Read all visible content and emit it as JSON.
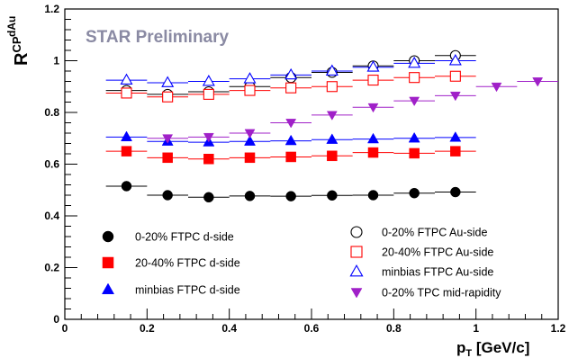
{
  "chart_data": {
    "type": "scatter",
    "watermark": "STAR Preliminary",
    "ylabel": {
      "main": "R",
      "sup": "dAu",
      "sub": "CP"
    },
    "xlabel": {
      "main": "p",
      "sub": "T",
      "rest": " [GeV/c]"
    },
    "xlim": [
      0,
      1.2
    ],
    "ylim": [
      0,
      1.2
    ],
    "x_ticks": [
      "0",
      "0.2",
      "0.4",
      "0.6",
      "0.8",
      "1",
      "1.2"
    ],
    "y_ticks": [
      "0",
      "0.2",
      "0.4",
      "0.6",
      "0.8",
      "1",
      "1.2"
    ],
    "grid": false,
    "series": [
      {
        "name": "0-20%  FTPC d-side",
        "marker": "filled-circle",
        "color": "#000000",
        "x": [
          0.15,
          0.25,
          0.35,
          0.45,
          0.55,
          0.65,
          0.75,
          0.85,
          0.95
        ],
        "y": [
          0.515,
          0.48,
          0.472,
          0.477,
          0.476,
          0.479,
          0.48,
          0.488,
          0.492
        ]
      },
      {
        "name": "20-40% FTPC d-side",
        "marker": "filled-square",
        "color": "#ff0000",
        "x": [
          0.15,
          0.25,
          0.35,
          0.45,
          0.55,
          0.65,
          0.75,
          0.85,
          0.95
        ],
        "y": [
          0.65,
          0.625,
          0.62,
          0.625,
          0.628,
          0.632,
          0.645,
          0.642,
          0.65
        ]
      },
      {
        "name": "minbias FTPC d-side",
        "marker": "filled-triangle-up",
        "color": "#0000ff",
        "x": [
          0.15,
          0.25,
          0.35,
          0.45,
          0.55,
          0.65,
          0.75,
          0.85,
          0.95
        ],
        "y": [
          0.705,
          0.688,
          0.685,
          0.688,
          0.69,
          0.695,
          0.697,
          0.7,
          0.703
        ]
      },
      {
        "name": "0-20%  FTPC Au-side",
        "marker": "open-circle",
        "color": "#000000",
        "x": [
          0.15,
          0.25,
          0.35,
          0.45,
          0.55,
          0.65,
          0.75,
          0.85,
          0.95
        ],
        "y": [
          0.885,
          0.87,
          0.88,
          0.9,
          0.935,
          0.955,
          0.98,
          1.0,
          1.02
        ]
      },
      {
        "name": "20-40% FTPC Au-side",
        "marker": "open-square",
        "color": "#ff0000",
        "x": [
          0.15,
          0.25,
          0.35,
          0.45,
          0.55,
          0.65,
          0.75,
          0.85,
          0.95
        ],
        "y": [
          0.875,
          0.86,
          0.87,
          0.885,
          0.895,
          0.9,
          0.925,
          0.935,
          0.94
        ]
      },
      {
        "name": "minbias FTPC Au-side",
        "marker": "open-triangle-up",
        "color": "#0000ff",
        "x": [
          0.15,
          0.25,
          0.35,
          0.45,
          0.55,
          0.65,
          0.75,
          0.85,
          0.95
        ],
        "y": [
          0.925,
          0.915,
          0.92,
          0.93,
          0.945,
          0.96,
          0.975,
          0.99,
          1.0
        ]
      },
      {
        "name": "0-20%  TPC mid-rapidity",
        "marker": "filled-triangle-down",
        "color": "#a020c8",
        "x": [
          0.25,
          0.35,
          0.45,
          0.55,
          0.65,
          0.75,
          0.85,
          0.95,
          1.05,
          1.15
        ],
        "y": [
          0.7,
          0.705,
          0.72,
          0.76,
          0.79,
          0.82,
          0.845,
          0.865,
          0.9,
          0.92
        ]
      }
    ]
  }
}
